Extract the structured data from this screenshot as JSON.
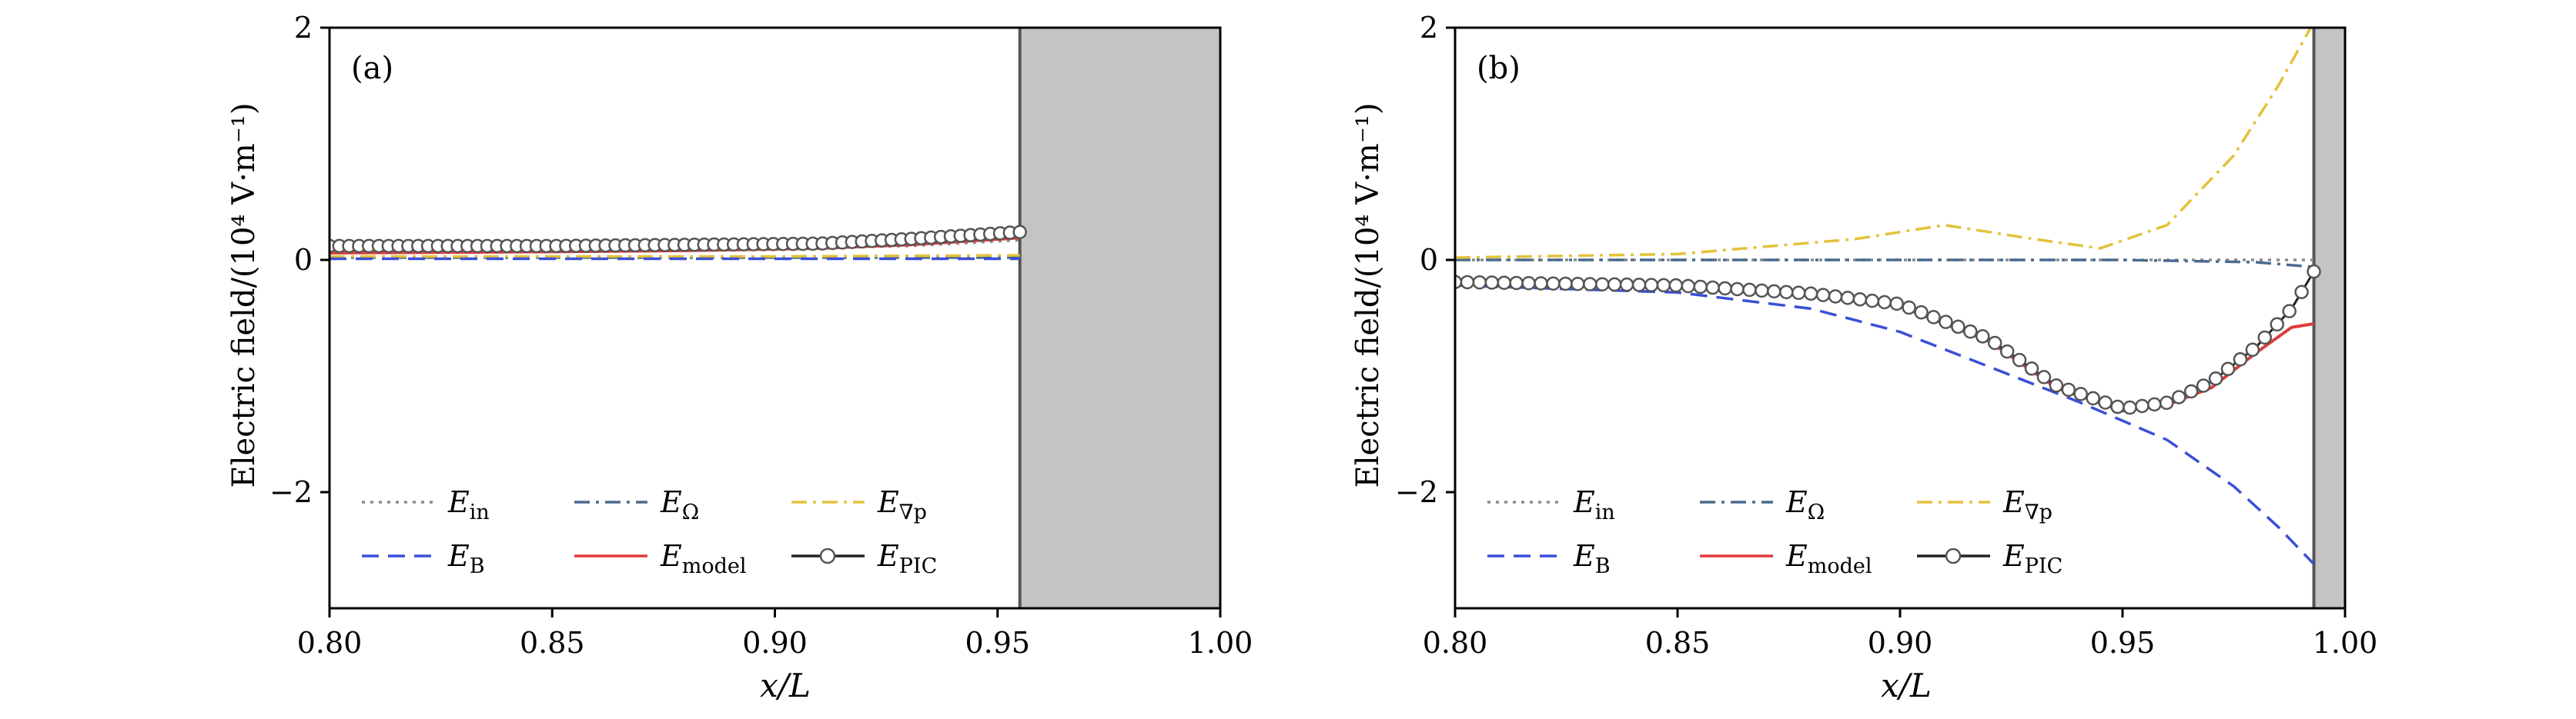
{
  "chart_data": [
    {
      "type": "line",
      "panel_label": "(a)",
      "xlabel": "x/L",
      "ylabel": "Electric field/(10⁴ V·m⁻¹)",
      "xlim": [
        0.8,
        1.0
      ],
      "ylim": [
        -3.0,
        2.0
      ],
      "xticks": [
        "0.80",
        "0.85",
        "0.90",
        "0.95",
        "1.00"
      ],
      "yticks": [
        "2",
        "0",
        "−2"
      ],
      "wall_x": 0.955,
      "series": [
        {
          "name": "E_in",
          "label_main": "E",
          "label_sub": "in",
          "color": "#8a8a8a",
          "style": "dotted",
          "x": [
            0.8,
            0.85,
            0.9,
            0.93,
            0.955
          ],
          "y": [
            0.1,
            0.1,
            0.1,
            0.12,
            0.17
          ]
        },
        {
          "name": "E_Ω",
          "label_main": "E",
          "label_sub": "Ω",
          "color": "#4a6b8f",
          "style": "dashdot",
          "x": [
            0.8,
            0.85,
            0.9,
            0.955
          ],
          "y": [
            0.02,
            0.02,
            0.02,
            0.02
          ]
        },
        {
          "name": "E_∇p",
          "label_main": "E",
          "label_sub": "∇p",
          "color": "#e3c23a",
          "style": "dashdot",
          "x": [
            0.8,
            0.85,
            0.9,
            0.955
          ],
          "y": [
            0.03,
            0.03,
            0.03,
            0.04
          ]
        },
        {
          "name": "E_B",
          "label_main": "E",
          "label_sub": "B",
          "color": "#3a4fd8",
          "style": "dashed",
          "x": [
            0.8,
            0.85,
            0.9,
            0.955
          ],
          "y": [
            0.01,
            0.01,
            0.01,
            0.01
          ]
        },
        {
          "name": "E_model",
          "label_main": "E",
          "label_sub": "model",
          "color": "#e03a3a",
          "style": "solid",
          "x": [
            0.8,
            0.85,
            0.88,
            0.91,
            0.93,
            0.955
          ],
          "y": [
            0.06,
            0.07,
            0.08,
            0.1,
            0.13,
            0.19
          ]
        },
        {
          "name": "E_PIC",
          "label_main": "E",
          "label_sub": "PIC",
          "color": "#3a3a3a",
          "style": "markers",
          "x": [
            0.8,
            0.85,
            0.88,
            0.91,
            0.93,
            0.955
          ],
          "y": [
            0.12,
            0.12,
            0.13,
            0.14,
            0.18,
            0.24
          ]
        }
      ]
    },
    {
      "type": "line",
      "panel_label": "(b)",
      "xlabel": "x/L",
      "ylabel": "Electric field/(10⁴ V·m⁻¹)",
      "xlim": [
        0.8,
        1.0
      ],
      "ylim": [
        -3.0,
        2.0
      ],
      "xticks": [
        "0.80",
        "0.85",
        "0.90",
        "0.95",
        "1.00"
      ],
      "yticks": [
        "2",
        "0",
        "−2"
      ],
      "wall_x": 0.993,
      "series": [
        {
          "name": "E_in",
          "label_main": "E",
          "label_sub": "in",
          "color": "#8a8a8a",
          "style": "dotted",
          "x": [
            0.8,
            0.85,
            0.9,
            0.95,
            0.993
          ],
          "y": [
            0.0,
            0.0,
            0.0,
            0.0,
            0.0
          ]
        },
        {
          "name": "E_Ω",
          "label_main": "E",
          "label_sub": "Ω",
          "color": "#4a6b8f",
          "style": "dashdot",
          "x": [
            0.8,
            0.85,
            0.9,
            0.95,
            0.98,
            0.993
          ],
          "y": [
            0.0,
            0.0,
            0.0,
            0.0,
            -0.02,
            -0.06
          ]
        },
        {
          "name": "E_∇p",
          "label_main": "E",
          "label_sub": "∇p",
          "color": "#e3c23a",
          "style": "dashdot",
          "x": [
            0.8,
            0.85,
            0.89,
            0.91,
            0.93,
            0.945,
            0.96,
            0.975,
            0.985,
            0.993
          ],
          "y": [
            0.02,
            0.05,
            0.18,
            0.3,
            0.18,
            0.1,
            0.3,
            0.9,
            1.5,
            2.05
          ]
        },
        {
          "name": "E_B",
          "label_main": "E",
          "label_sub": "B",
          "color": "#3a4fd8",
          "style": "dashed",
          "x": [
            0.8,
            0.85,
            0.88,
            0.9,
            0.92,
            0.94,
            0.96,
            0.975,
            0.985,
            0.993
          ],
          "y": [
            -0.22,
            -0.28,
            -0.42,
            -0.62,
            -0.92,
            -1.22,
            -1.55,
            -1.95,
            -2.3,
            -2.62
          ]
        },
        {
          "name": "E_model",
          "label_main": "E",
          "label_sub": "model",
          "color": "#e03a3a",
          "style": "solid",
          "x": [
            0.8,
            0.85,
            0.88,
            0.9,
            0.92,
            0.935,
            0.95,
            0.96,
            0.97,
            0.98,
            0.988,
            0.993
          ],
          "y": [
            -0.2,
            -0.23,
            -0.3,
            -0.4,
            -0.7,
            -1.1,
            -1.3,
            -1.25,
            -1.1,
            -0.8,
            -0.58,
            -0.55
          ]
        },
        {
          "name": "E_PIC",
          "label_main": "E",
          "label_sub": "PIC",
          "color": "#3a3a3a",
          "style": "markers",
          "x": [
            0.8,
            0.85,
            0.88,
            0.9,
            0.92,
            0.935,
            0.95,
            0.96,
            0.97,
            0.98,
            0.988,
            0.993
          ],
          "y": [
            -0.19,
            -0.22,
            -0.29,
            -0.38,
            -0.68,
            -1.08,
            -1.28,
            -1.23,
            -1.05,
            -0.75,
            -0.42,
            -0.1
          ]
        }
      ]
    }
  ]
}
